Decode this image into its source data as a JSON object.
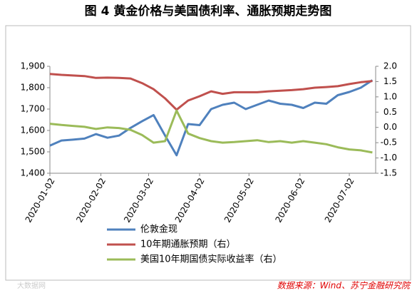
{
  "chart_data": {
    "type": "line",
    "title": "图 4 黄金价格与美国债利率、通胀预期走势图",
    "x": [
      "2020-01-02",
      "2020-01-09",
      "2020-01-16",
      "2020-01-23",
      "2020-01-30",
      "2020-02-06",
      "2020-02-13",
      "2020-02-20",
      "2020-02-27",
      "2020-03-05",
      "2020-03-12",
      "2020-03-19",
      "2020-03-26",
      "2020-04-02",
      "2020-04-09",
      "2020-04-16",
      "2020-04-23",
      "2020-04-30",
      "2020-05-07",
      "2020-05-14",
      "2020-05-21",
      "2020-05-28",
      "2020-06-04",
      "2020-06-11",
      "2020-06-18",
      "2020-06-25",
      "2020-07-02",
      "2020-07-09",
      "2020-07-16"
    ],
    "xlim": [
      "2020-01-02",
      "2020-07-18"
    ],
    "xticks": [
      "2020-01-02",
      "2020-02-02",
      "2020-03-02",
      "2020-04-02",
      "2020-05-02",
      "2020-06-02",
      "2020-07-02"
    ],
    "ylim": [
      1400,
      1900
    ],
    "yticks": [
      {
        "value": 1400,
        "label": "1,400"
      },
      {
        "value": 1500,
        "label": "1,500"
      },
      {
        "value": 1600,
        "label": "1,600"
      },
      {
        "value": 1700,
        "label": "1,700"
      },
      {
        "value": 1800,
        "label": "1,800"
      },
      {
        "value": 1900,
        "label": "1,900"
      }
    ],
    "y2lim": [
      -1.5,
      2.0
    ],
    "y2ticks": [
      -1.5,
      {
        "value": -1,
        "label": "-1.0"
      },
      -0.5,
      {
        "value": 0,
        "label": "0.0"
      },
      0.5,
      {
        "value": 1,
        "label": "1.0"
      },
      1.5,
      {
        "value": 2,
        "label": "2.0"
      }
    ],
    "series": [
      {
        "name": "伦敦金现",
        "color": "#4f81bd",
        "values": [
          1529,
          1553,
          1557,
          1562,
          1583,
          1566,
          1576,
          1612,
          1643,
          1672,
          1576,
          1484,
          1630,
          1625,
          1700,
          1720,
          1730,
          1700,
          1720,
          1740,
          1725,
          1720,
          1705,
          1730,
          1725,
          1765,
          1780,
          1800,
          1835
        ]
      },
      {
        "name": "10年期通胀预期（右）",
        "color": "#c0504d",
        "axis": "y2",
        "values": [
          1.75,
          1.72,
          1.7,
          1.68,
          1.62,
          1.63,
          1.62,
          1.6,
          1.45,
          1.25,
          0.95,
          0.58,
          0.88,
          1.02,
          1.18,
          1.1,
          1.15,
          1.15,
          1.15,
          1.18,
          1.2,
          1.22,
          1.25,
          1.3,
          1.32,
          1.35,
          1.42,
          1.48,
          1.52
        ]
      },
      {
        "name": "美国10年期国债实际收益率（右）",
        "color": "#9bbb59",
        "axis": "y2",
        "values": [
          0.12,
          0.08,
          0.05,
          0.02,
          -0.05,
          0,
          -0.02,
          -0.08,
          -0.25,
          -0.5,
          -0.45,
          0.55,
          -0.2,
          -0.35,
          -0.45,
          -0.5,
          -0.48,
          -0.45,
          -0.42,
          -0.48,
          -0.45,
          -0.5,
          -0.45,
          -0.5,
          -0.55,
          -0.65,
          -0.72,
          -0.75,
          -0.82
        ]
      }
    ],
    "source": "数据来源：Wind、苏宁金融研究院",
    "watermark": "大数据网"
  }
}
